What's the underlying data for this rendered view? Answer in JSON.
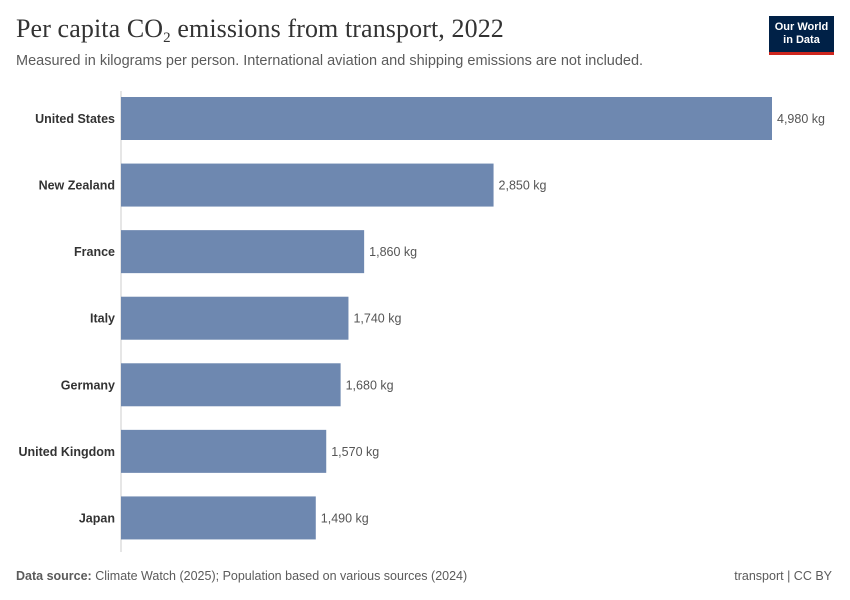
{
  "header": {
    "title_main": "Per capita CO",
    "title_sub": "2",
    "title_rest": " emissions from transport, 2022",
    "subtitle": "Measured in kilograms per person. International aviation and shipping emissions are not included."
  },
  "logo": {
    "line1": "Our World",
    "line2": "in Data"
  },
  "footer": {
    "source_label": "Data source:",
    "source_text": " Climate Watch (2025); Population based on various sources (2024)",
    "right_text": "transport | CC BY"
  },
  "colors": {
    "bar": "#6e88b0",
    "axis": "#cccccc",
    "label": "#333333",
    "value": "#555555"
  },
  "chart_data": {
    "type": "bar",
    "orientation": "horizontal",
    "categories": [
      "United States",
      "New Zealand",
      "France",
      "Italy",
      "Germany",
      "United Kingdom",
      "Japan"
    ],
    "values": [
      4980,
      2850,
      1860,
      1740,
      1680,
      1570,
      1490
    ],
    "value_labels": [
      "4,980 kg",
      "2,850 kg",
      "1,860 kg",
      "1,740 kg",
      "1,680 kg",
      "1,570 kg",
      "1,490 kg"
    ],
    "xlim": [
      0,
      4980
    ],
    "unit": "kg",
    "grid": false
  }
}
